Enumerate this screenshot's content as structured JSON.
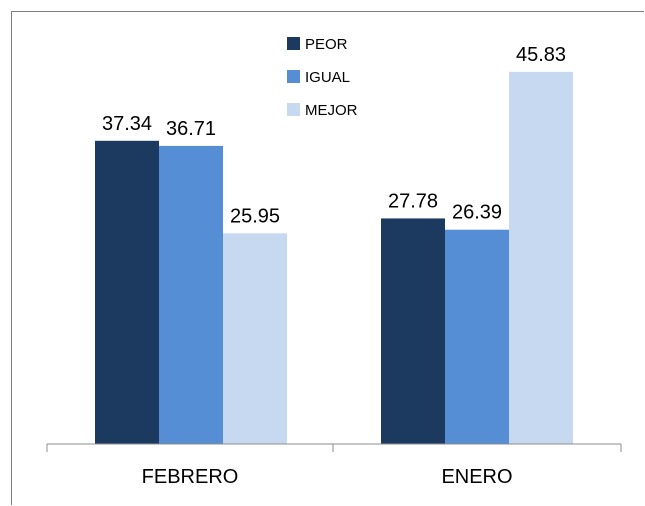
{
  "chart_data": {
    "type": "bar",
    "title": "",
    "xlabel": "",
    "ylabel": "",
    "categories": [
      "FEBRERO",
      "ENERO"
    ],
    "series": [
      {
        "name": "PEOR",
        "values": [
          37.34,
          27.78
        ],
        "value_labels": [
          "37.34",
          "27.78"
        ],
        "color": "#1c3a60"
      },
      {
        "name": "IGUAL",
        "values": [
          36.71,
          26.39
        ],
        "value_labels": [
          "36.71",
          "26.39"
        ],
        "color": "#558ed5"
      },
      {
        "name": "MEJOR",
        "values": [
          25.95,
          45.83
        ],
        "value_labels": [
          "25.95",
          "45.83"
        ],
        "color": "#c6d9f1"
      }
    ],
    "ylim": [
      0,
      50
    ],
    "grid": false,
    "legend_position": "top-center"
  }
}
